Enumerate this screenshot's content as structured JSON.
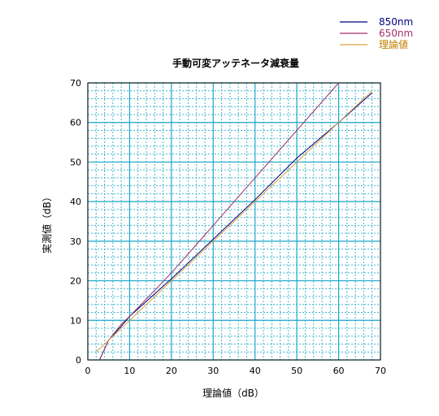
{
  "chart_data": {
    "type": "line",
    "title": "手動可変アッテネータ減衰量",
    "xlabel": "理論値（dB）",
    "ylabel": "実測値（dB）",
    "xlim": [
      0,
      70
    ],
    "ylim": [
      0,
      70
    ],
    "xticks": [
      0,
      10,
      20,
      30,
      40,
      50,
      60,
      70
    ],
    "yticks": [
      0,
      10,
      20,
      30,
      40,
      50,
      60,
      70
    ],
    "grid": true,
    "legend_position": "top-right",
    "series": [
      {
        "name": "850nm",
        "color": "#000080",
        "x": [
          2.8,
          5,
          8,
          10,
          20,
          30,
          40,
          50,
          60,
          68
        ],
        "y": [
          0,
          5,
          8.5,
          11,
          20.5,
          30.5,
          40.5,
          51,
          60,
          67.5
        ]
      },
      {
        "name": "650nm",
        "color": "#a0306a",
        "x": [
          2.8,
          5,
          8,
          10,
          20,
          30,
          40,
          50,
          60
        ],
        "y": [
          0,
          5,
          9,
          11,
          22,
          34,
          46,
          58,
          70
        ]
      },
      {
        "name": "理論値",
        "color": "#e0a040",
        "x": [
          2,
          68
        ],
        "y": [
          2,
          68
        ]
      }
    ]
  }
}
